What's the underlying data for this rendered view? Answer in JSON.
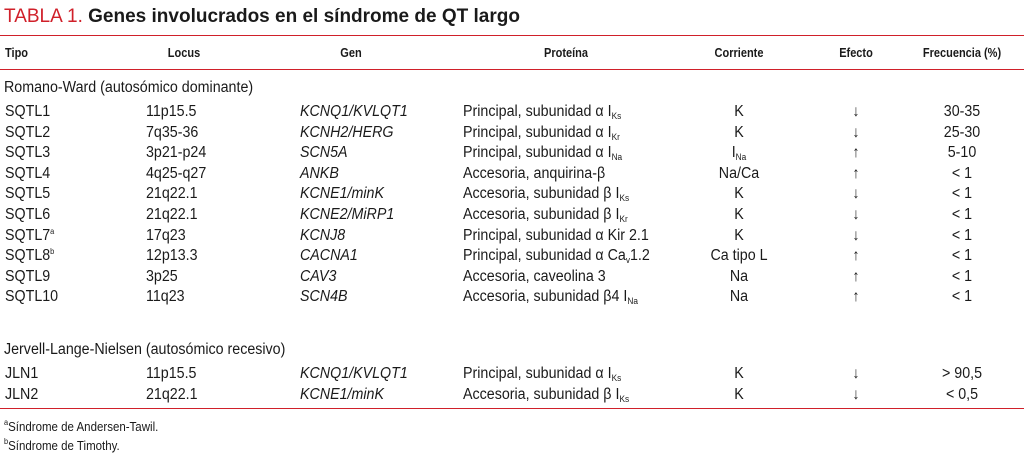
{
  "title": {
    "label": "TABLA 1.",
    "text": "Genes involucrados en el síndrome de QT largo"
  },
  "headers": [
    "Tipo",
    "Locus",
    "Gen",
    "Proteína",
    "Corriente",
    "Efecto",
    "Frecuencia (%)"
  ],
  "groups": [
    {
      "label": "Romano-Ward (autosómico dominante)",
      "rows": [
        {
          "tipo": "SQTL1",
          "sup": "",
          "locus": "11p15.5",
          "gen": "KCNQ1/KVLQT1",
          "proteina": "Principal, subunidad α I",
          "prot_sub": "Ks",
          "prot_tail": "",
          "corriente": "K",
          "corr_sub": "",
          "efecto": "↓",
          "frecuencia": "30-35"
        },
        {
          "tipo": "SQTL2",
          "sup": "",
          "locus": "7q35-36",
          "gen": "KCNH2/HERG",
          "proteina": "Principal, subunidad α I",
          "prot_sub": "Kr",
          "prot_tail": "",
          "corriente": "K",
          "corr_sub": "",
          "efecto": "↓",
          "frecuencia": "25-30"
        },
        {
          "tipo": "SQTL3",
          "sup": "",
          "locus": "3p21-p24",
          "gen": "SCN5A",
          "proteina": "Principal, subunidad α I",
          "prot_sub": "Na",
          "prot_tail": "",
          "corriente": "I",
          "corr_sub": "Na",
          "efecto": "↑",
          "frecuencia": "5-10"
        },
        {
          "tipo": "SQTL4",
          "sup": "",
          "locus": "4q25-q27",
          "gen": "ANKB",
          "proteina": "Accesoria, anquirina-β",
          "prot_sub": "",
          "prot_tail": "",
          "corriente": "Na/Ca",
          "corr_sub": "",
          "efecto": "↑",
          "frecuencia": "< 1"
        },
        {
          "tipo": "SQTL5",
          "sup": "",
          "locus": "21q22.1",
          "gen": "KCNE1/minK",
          "proteina": "Accesoria, subunidad β I",
          "prot_sub": "Ks",
          "prot_tail": "",
          "corriente": "K",
          "corr_sub": "",
          "efecto": "↓",
          "frecuencia": "< 1"
        },
        {
          "tipo": "SQTL6",
          "sup": "",
          "locus": "21q22.1",
          "gen": "KCNE2/MiRP1",
          "proteina": "Accesoria, subunidad β I",
          "prot_sub": "Kr",
          "prot_tail": "",
          "corriente": "K",
          "corr_sub": "",
          "efecto": "↓",
          "frecuencia": "< 1"
        },
        {
          "tipo": "SQTL7",
          "sup": "a",
          "locus": "17q23",
          "gen": "KCNJ8",
          "proteina": "Principal, subunidad α Kir 2.1",
          "prot_sub": "",
          "prot_tail": "",
          "corriente": "K",
          "corr_sub": "",
          "efecto": "↓",
          "frecuencia": "< 1"
        },
        {
          "tipo": "SQTL8",
          "sup": "b",
          "locus": "12p13.3",
          "gen": "CACNA1",
          "proteina": "Principal, subunidad α Ca",
          "prot_sub": "v",
          "prot_tail": "1.2",
          "corriente": "Ca tipo L",
          "corr_sub": "",
          "efecto": "↑",
          "frecuencia": "< 1"
        },
        {
          "tipo": "SQTL9",
          "sup": "",
          "locus": "3p25",
          "gen": "CAV3",
          "proteina": "Accesoria, caveolina 3",
          "prot_sub": "",
          "prot_tail": "",
          "corriente": "Na",
          "corr_sub": "",
          "efecto": "↑",
          "frecuencia": "< 1"
        },
        {
          "tipo": "SQTL10",
          "sup": "",
          "locus": "11q23",
          "gen": "SCN4B",
          "proteina": "Accesoria, subunidad β4 I",
          "prot_sub": "Na",
          "prot_tail": "",
          "corriente": "Na",
          "corr_sub": "",
          "efecto": "↑",
          "frecuencia": "< 1"
        }
      ]
    },
    {
      "label": "Jervell-Lange-Nielsen (autosómico recesivo)",
      "rows": [
        {
          "tipo": "JLN1",
          "sup": "",
          "locus": "11p15.5",
          "gen": "KCNQ1/KVLQT1",
          "proteina": "Principal, subunidad α I",
          "prot_sub": "Ks",
          "prot_tail": "",
          "corriente": "K",
          "corr_sub": "",
          "efecto": "↓",
          "frecuencia": "> 90,5"
        },
        {
          "tipo": "JLN2",
          "sup": "",
          "locus": "21q22.1",
          "gen": "KCNE1/minK",
          "proteina": "Accesoria, subunidad β I",
          "prot_sub": "Ks",
          "prot_tail": "",
          "corriente": "K",
          "corr_sub": "",
          "efecto": "↓",
          "frecuencia": "< 0,5"
        }
      ]
    }
  ],
  "footnotes": [
    {
      "mark": "a",
      "text": "Síndrome de Andersen-Tawil."
    },
    {
      "mark": "b",
      "text": "Síndrome de Timothy."
    }
  ],
  "colors": {
    "accent": "#d0202a"
  }
}
